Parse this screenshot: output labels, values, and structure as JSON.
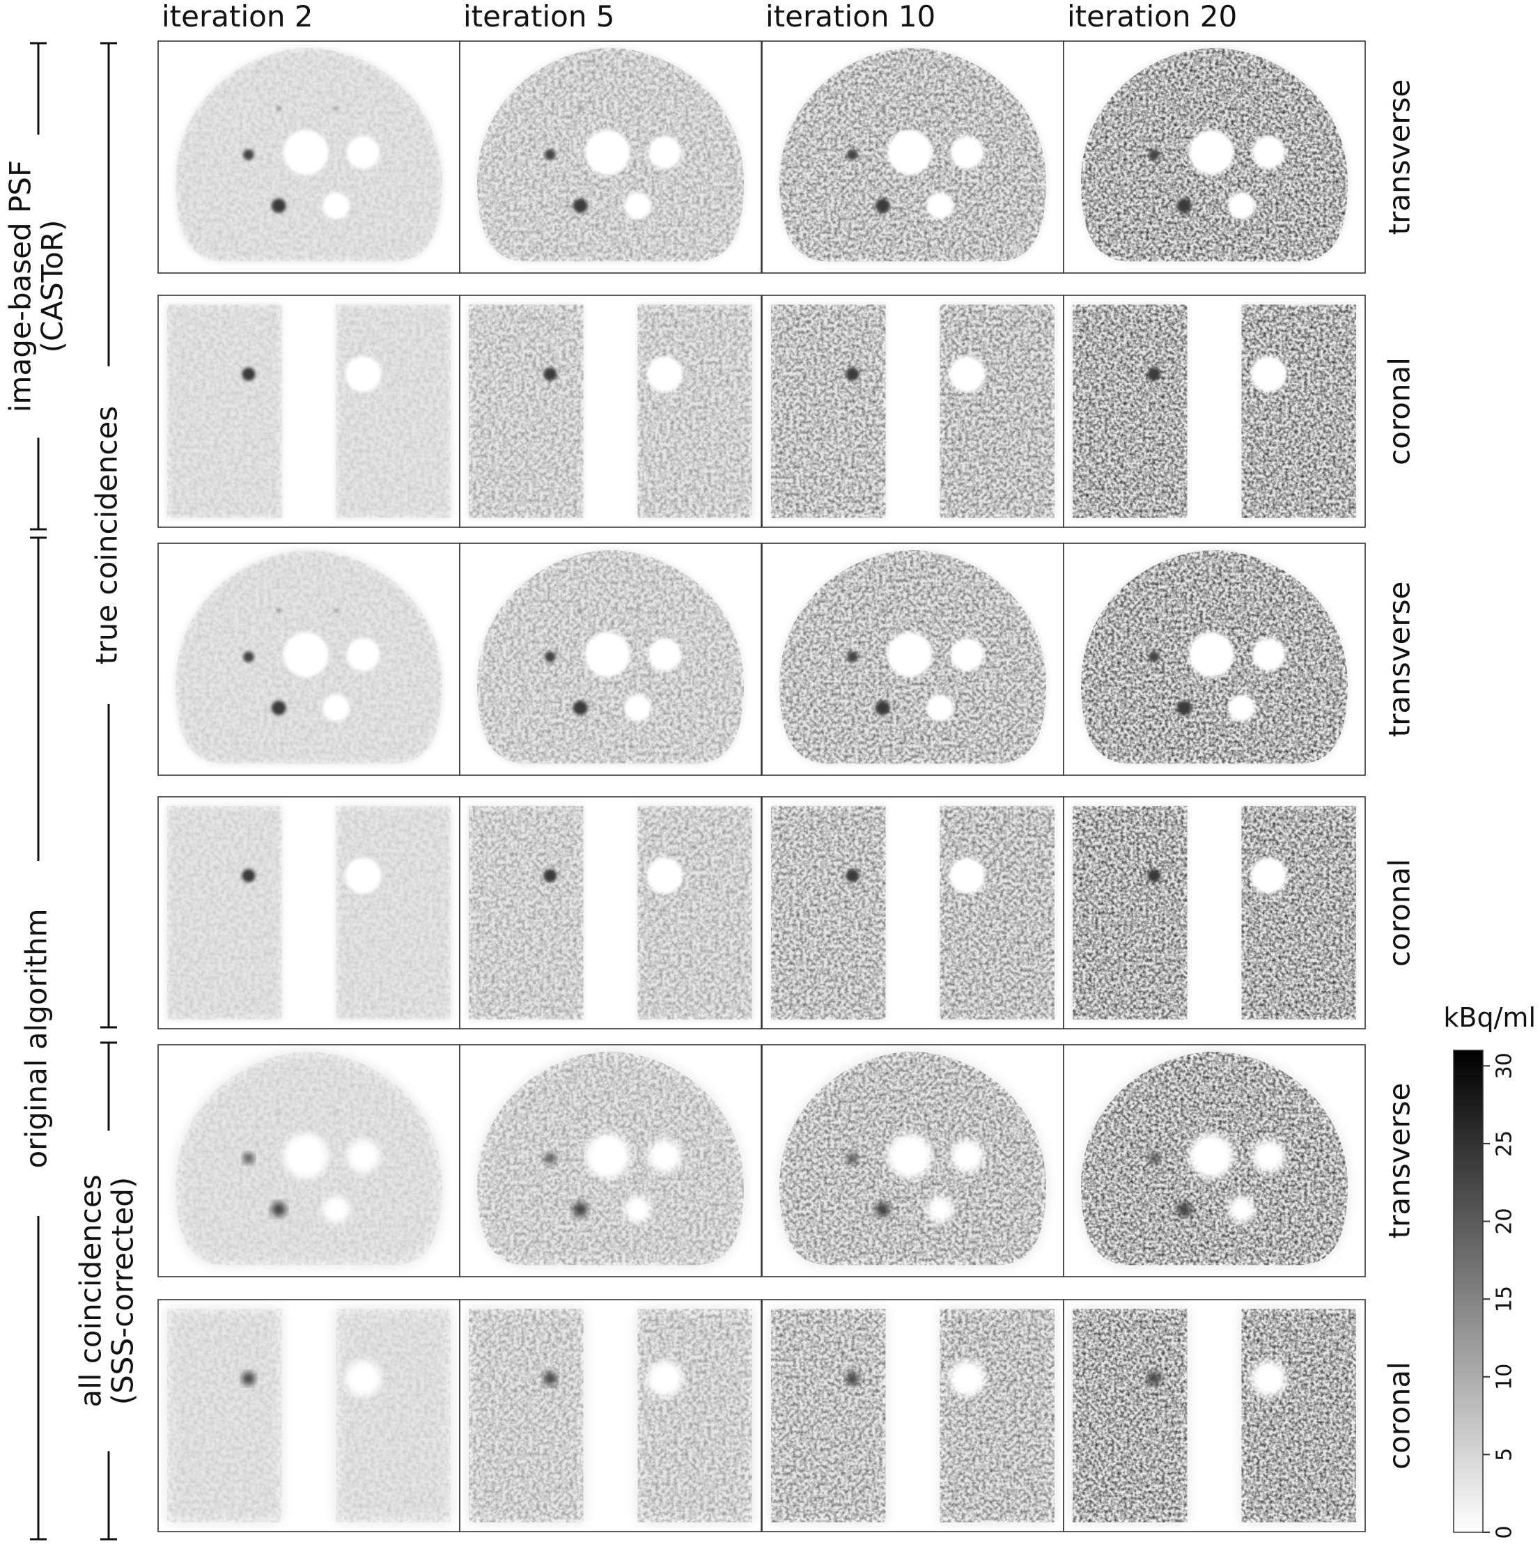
{
  "columns": [
    {
      "label": "iteration 2",
      "noise": 0.15
    },
    {
      "label": "iteration 5",
      "noise": 0.45
    },
    {
      "label": "iteration 10",
      "noise": 0.7
    },
    {
      "label": "iteration 20",
      "noise": 1.0
    }
  ],
  "rows": [
    {
      "view_label": "transverse",
      "view": "transverse",
      "blur": 1.0
    },
    {
      "view_label": "coronal",
      "view": "coronal",
      "blur": 1.0
    },
    {
      "view_label": "transverse",
      "view": "transverse",
      "blur": 1.0
    },
    {
      "view_label": "coronal",
      "view": "coronal",
      "blur": 1.0
    },
    {
      "view_label": "transverse",
      "view": "transverse",
      "blur": 1.6
    },
    {
      "view_label": "coronal",
      "view": "coronal",
      "blur": 1.6
    }
  ],
  "outer_groups": [
    {
      "lines": [
        "image-based PSF",
        "(CASToR)"
      ]
    },
    {
      "lines": [
        "original algorithm"
      ]
    }
  ],
  "inner_groups": [
    {
      "lines": [
        "true coincidences"
      ]
    },
    {
      "lines": [
        "all coincidences",
        "(SSS-corrected)"
      ]
    }
  ],
  "colorbar": {
    "unit": "kBq/ml",
    "min": 0,
    "max": 31,
    "ticks": [
      0,
      5,
      10,
      15,
      20,
      25,
      30
    ],
    "colormap": [
      "#ffffff",
      "#000000"
    ]
  }
}
